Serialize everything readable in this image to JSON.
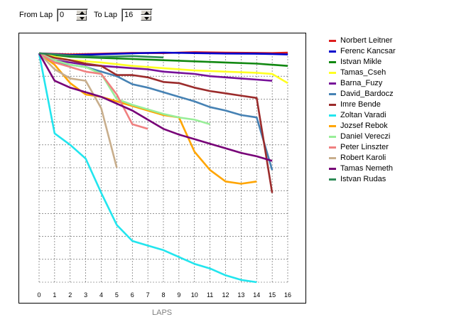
{
  "controls": {
    "from_label": "From Lap",
    "from_value": "0",
    "to_label": "To Lap",
    "to_value": "16"
  },
  "chart_data": {
    "type": "line",
    "xlabel": "LAPS",
    "ylabel": "",
    "xlim": [
      0,
      16
    ],
    "x_ticks": [
      "0",
      "1",
      "2",
      "3",
      "4",
      "5",
      "6",
      "7",
      "8",
      "9",
      "10",
      "11",
      "12",
      "13",
      "14",
      "15",
      "16"
    ],
    "ylim": [
      -10,
      0
    ],
    "grid": true,
    "legend_position": "right",
    "series": [
      {
        "name": "Norbert Leitner",
        "color": "#dd1e1e",
        "x": [
          0,
          2,
          4,
          6,
          8,
          10,
          12,
          14,
          15,
          16
        ],
        "y": [
          0,
          -0.05,
          -0.02,
          0.02,
          0.01,
          0.05,
          0.03,
          0.02,
          0.01,
          0.03
        ]
      },
      {
        "name": "Ferenc Kancsar",
        "color": "#0000cc",
        "x": [
          0,
          2,
          4,
          6,
          8,
          10,
          12,
          14,
          15,
          16
        ],
        "y": [
          0,
          -0.08,
          -0.04,
          0,
          0.03,
          0.01,
          -0.01,
          -0.02,
          -0.03,
          -0.05
        ]
      },
      {
        "name": "Istvan Mikle",
        "color": "#118811",
        "x": [
          0,
          2,
          4,
          6,
          8,
          10,
          12,
          14,
          15,
          16
        ],
        "y": [
          0,
          -0.15,
          -0.2,
          -0.25,
          -0.3,
          -0.35,
          -0.4,
          -0.45,
          -0.5,
          -0.55
        ]
      },
      {
        "name": "Tamas_Cseh",
        "color": "#ffff22",
        "x": [
          0,
          2,
          4,
          6,
          8,
          10,
          12,
          14,
          15,
          16
        ],
        "y": [
          0,
          -0.3,
          -0.4,
          -0.55,
          -0.65,
          -0.75,
          -0.8,
          -0.85,
          -0.9,
          -1.3
        ]
      },
      {
        "name": "Barna_Fuzy",
        "color": "#771199",
        "x": [
          0,
          1,
          2,
          3,
          4,
          5,
          6,
          7,
          8,
          9,
          10,
          11,
          12,
          13,
          14,
          15
        ],
        "y": [
          0,
          -0.3,
          -0.4,
          -0.5,
          -0.55,
          -0.6,
          -0.65,
          -0.7,
          -0.8,
          -0.85,
          -0.9,
          -1,
          -1.05,
          -1.1,
          -1.15,
          -1.2
        ]
      },
      {
        "name": "David_Bardocz",
        "color": "#4682b4",
        "x": [
          0,
          1,
          2,
          3,
          4,
          5,
          6,
          7,
          8,
          9,
          10,
          11,
          12,
          13,
          14,
          15
        ],
        "y": [
          0,
          -0.4,
          -0.5,
          -0.6,
          -0.8,
          -1,
          -1.35,
          -1.5,
          -1.7,
          -1.9,
          -2.1,
          -2.35,
          -2.5,
          -2.7,
          -2.8,
          -5.1
        ]
      },
      {
        "name": "Imre Bende",
        "color": "#9b2b2b",
        "x": [
          0,
          1,
          2,
          3,
          4,
          5,
          6,
          7,
          8,
          9,
          10,
          11,
          12,
          13,
          14,
          15
        ],
        "y": [
          0,
          -0.2,
          -0.3,
          -0.45,
          -0.55,
          -0.95,
          -0.95,
          -1.05,
          -1.25,
          -1.3,
          -1.5,
          -1.65,
          -1.75,
          -1.85,
          -1.95,
          -6.1
        ]
      },
      {
        "name": "Zoltan Varadi",
        "color": "#22e5ee",
        "x": [
          0,
          1,
          2,
          3,
          4,
          5,
          6,
          7,
          8,
          9,
          10,
          11,
          12,
          13,
          14
        ],
        "y": [
          0,
          -3.5,
          -4,
          -4.6,
          -6.1,
          -7.5,
          -8.2,
          -8.4,
          -8.6,
          -8.9,
          -9.2,
          -9.4,
          -9.7,
          -9.9,
          -10
        ]
      },
      {
        "name": "Jozsef Rebok",
        "color": "#ffa500",
        "x": [
          0,
          1,
          2,
          3,
          4,
          5,
          6,
          7,
          8,
          9,
          10,
          11,
          12,
          13,
          14
        ],
        "y": [
          0,
          -0.5,
          -1.3,
          -1.8,
          -1.9,
          -2.1,
          -2.3,
          -2.5,
          -2.7,
          -2.8,
          -4.3,
          -5.1,
          -5.6,
          -5.7,
          -5.6
        ]
      },
      {
        "name": "Daniel Vereczi",
        "color": "#99ee99",
        "x": [
          0,
          1,
          2,
          3,
          4,
          5,
          6,
          7,
          8,
          9,
          10,
          11
        ],
        "y": [
          0,
          -0.3,
          -0.5,
          -0.6,
          -0.9,
          -2,
          -2.25,
          -2.45,
          -2.65,
          -2.8,
          -2.9,
          -3.1
        ]
      },
      {
        "name": "Peter Linszter",
        "color": "#f08080",
        "x": [
          0,
          1,
          2,
          3,
          4,
          5,
          6,
          7
        ],
        "y": [
          0,
          -0.4,
          -0.6,
          -0.8,
          -0.9,
          -1.8,
          -3.1,
          -3.3
        ]
      },
      {
        "name": "Robert Karoli",
        "color": "#c8ae8c",
        "x": [
          0,
          1,
          2,
          3,
          4,
          5
        ],
        "y": [
          0,
          -0.7,
          -1.1,
          -1.2,
          -2.4,
          -5
        ]
      },
      {
        "name": "Tamas Nemeth",
        "color": "#770077",
        "x": [
          0,
          1,
          2,
          3,
          4,
          5,
          6,
          7,
          8,
          9,
          10,
          11,
          12,
          13,
          14,
          15
        ],
        "y": [
          0,
          -1.2,
          -1.5,
          -1.7,
          -1.9,
          -2.2,
          -2.5,
          -2.9,
          -3.3,
          -3.55,
          -3.75,
          -3.95,
          -4.15,
          -4.35,
          -4.5,
          -4.7
        ]
      },
      {
        "name": "Istvan Rudas",
        "color": "#2e8b57",
        "x": [
          0,
          2,
          4,
          6,
          8
        ],
        "y": [
          0,
          -0.1,
          -0.15,
          -0.12,
          -0.18
        ]
      }
    ]
  }
}
